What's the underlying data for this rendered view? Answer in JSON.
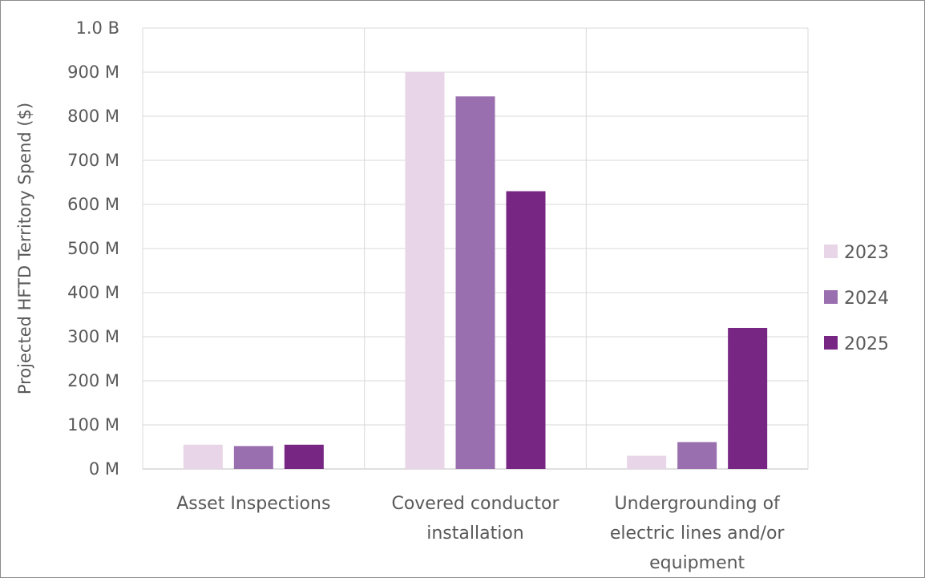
{
  "chart_data": {
    "type": "bar",
    "title": "",
    "xlabel": "",
    "ylabel": "Projected HFTD Territory Spend ($)",
    "ylim": [
      0,
      1000000000
    ],
    "yticks": [
      0,
      100000000,
      200000000,
      300000000,
      400000000,
      500000000,
      600000000,
      700000000,
      800000000,
      900000000,
      1000000000
    ],
    "ytick_labels": [
      "0 M",
      "100 M",
      "200 M",
      "300 M",
      "400 M",
      "500 M",
      "600 M",
      "700 M",
      "800 M",
      "900 M",
      "1.0 B"
    ],
    "categories": [
      [
        "Asset Inspections"
      ],
      [
        "Covered conductor",
        "installation"
      ],
      [
        "Undergrounding of",
        "electric lines and/or",
        "equipment"
      ]
    ],
    "series": [
      {
        "name": "2023",
        "color": "#e8d5e8",
        "values": [
          55000000,
          900000000,
          30000000
        ]
      },
      {
        "name": "2024",
        "color": "#9a6faf",
        "values": [
          52000000,
          845000000,
          61000000
        ]
      },
      {
        "name": "2025",
        "color": "#772683",
        "values": [
          55000000,
          630000000,
          320000000
        ]
      }
    ],
    "grid": true,
    "legend": "right"
  }
}
